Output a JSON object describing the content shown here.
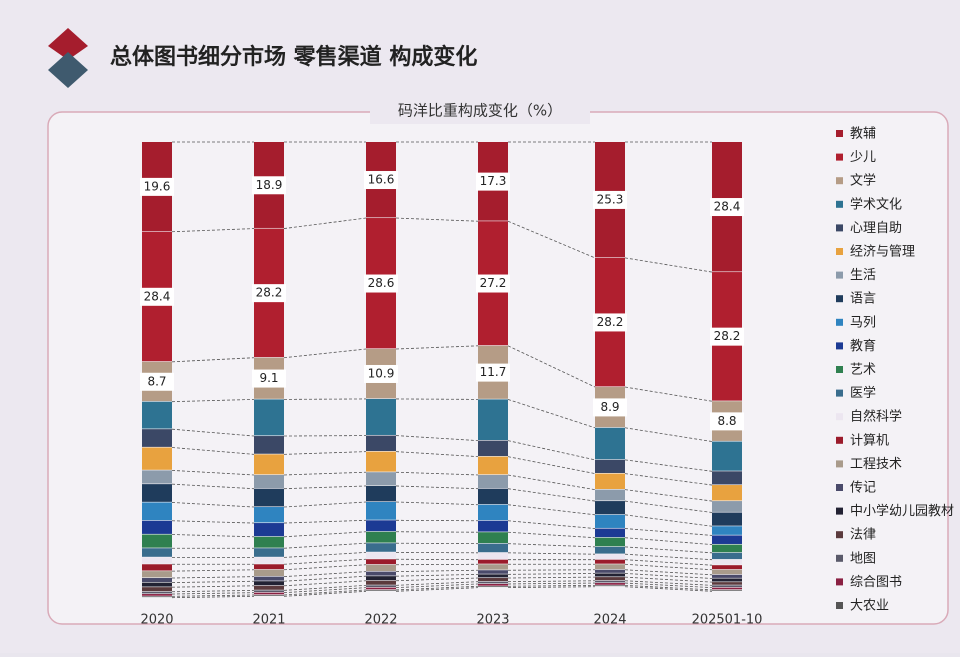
{
  "chart_data": {
    "type": "stacked-bar",
    "title": "总体图书细分市场 零售渠道 构成变化",
    "subtitle": "码洋比重构成变化（%）",
    "categories": [
      "2020",
      "2021",
      "2022",
      "2023",
      "2024",
      "202501-10"
    ],
    "ylim": [
      0,
      100
    ],
    "series": [
      {
        "name": "教辅",
        "color": "#a51d2d",
        "data_labels": true,
        "values": [
          19.6,
          18.9,
          16.6,
          17.3,
          25.3,
          28.4
        ]
      },
      {
        "name": "少儿",
        "color": "#b01f2f",
        "data_labels": true,
        "values": [
          28.4,
          28.2,
          28.6,
          27.2,
          28.2,
          28.2
        ]
      },
      {
        "name": "文学",
        "color": "#b59c86",
        "data_labels": true,
        "values": [
          8.7,
          9.1,
          10.9,
          11.7,
          8.9,
          8.8
        ]
      },
      {
        "name": "学术文化",
        "color": "#2e7392",
        "values": [
          6,
          8,
          8,
          9,
          7,
          6.5
        ]
      },
      {
        "name": "心理自助",
        "color": "#3b4866",
        "values": [
          4,
          4,
          3.5,
          3.5,
          3,
          3
        ]
      },
      {
        "name": "经济与管理",
        "color": "#e8a23f",
        "values": [
          5,
          4.5,
          4.5,
          4,
          3.5,
          3.5
        ]
      },
      {
        "name": "生活",
        "color": "#8c9bab",
        "values": [
          3,
          3,
          3,
          3,
          2.5,
          2.5
        ]
      },
      {
        "name": "语言",
        "color": "#1f3c5c",
        "values": [
          4,
          4,
          3.5,
          3.5,
          3,
          3
        ]
      },
      {
        "name": "马列",
        "color": "#2f84c0",
        "values": [
          4,
          3.5,
          4,
          3.5,
          3,
          2
        ]
      },
      {
        "name": "教育",
        "color": "#1c3a94",
        "values": [
          3,
          3,
          2.5,
          2.5,
          2,
          2
        ]
      },
      {
        "name": "艺术",
        "color": "#2f8050",
        "values": [
          3,
          2.5,
          2.5,
          2.5,
          2,
          1.8
        ]
      },
      {
        "name": "医学",
        "color": "#3a6d8d",
        "values": [
          2,
          2,
          2,
          2,
          1.6,
          1.5
        ]
      },
      {
        "name": "自然科学",
        "color": "#ece6f0",
        "values": [
          1.5,
          1.5,
          1.5,
          1.5,
          1.2,
          1.2
        ]
      },
      {
        "name": "计算机",
        "color": "#9b1b2b",
        "values": [
          1.5,
          1.2,
          1.2,
          1,
          1,
          1
        ]
      },
      {
        "name": "工程技术",
        "color": "#a99b8b",
        "values": [
          1.5,
          1.5,
          1.5,
          1.3,
          1.2,
          1.1
        ]
      },
      {
        "name": "传记",
        "color": "#4a4a6a",
        "values": [
          1,
          1,
          1,
          0.9,
          0.8,
          0.8
        ]
      },
      {
        "name": "中小学幼儿园教材",
        "color": "#222233",
        "values": [
          1,
          1,
          1,
          0.8,
          0.8,
          0.8
        ]
      },
      {
        "name": "法律",
        "color": "#5b3a3d",
        "values": [
          1,
          1,
          1,
          0.8,
          0.8,
          0.7
        ]
      },
      {
        "name": "地图",
        "color": "#5a5a6a",
        "values": [
          0.5,
          0.5,
          0.5,
          0.5,
          0.5,
          0.5
        ]
      },
      {
        "name": "综合图书",
        "color": "#8a2042",
        "values": [
          0.5,
          0.5,
          0.5,
          0.5,
          0.5,
          0.5
        ]
      },
      {
        "name": "大农业",
        "color": "#555555",
        "values": [
          0.3,
          0.3,
          0.3,
          0.3,
          0.3,
          0.3
        ]
      }
    ]
  }
}
